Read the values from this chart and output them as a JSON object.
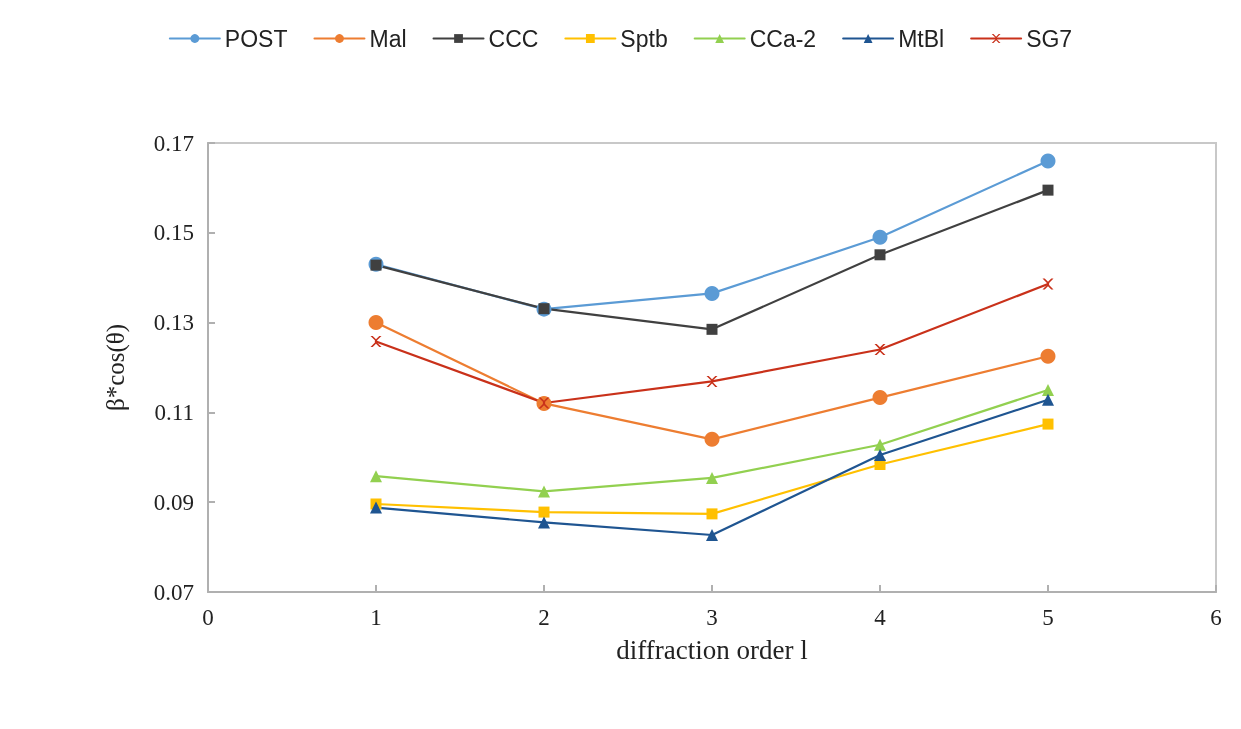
{
  "chart_data": {
    "type": "line",
    "xlabel": "diffraction order l",
    "ylabel": "β*cos(θ)",
    "x": [
      1,
      2,
      3,
      4,
      5
    ],
    "xlim": [
      0,
      6
    ],
    "xticks": [
      0,
      1,
      2,
      3,
      4,
      5,
      6
    ],
    "ylim": [
      0.07,
      0.17
    ],
    "yticks": [
      0.07,
      0.09,
      0.11,
      0.13,
      0.15,
      0.17
    ],
    "grid": false,
    "legend": "top",
    "line_style": "solid",
    "series": [
      {
        "name": "POST",
        "color": "#5b9bd5",
        "marker": "circle",
        "values": [
          0.143,
          0.133,
          0.1365,
          0.149,
          0.166
        ]
      },
      {
        "name": "Mal",
        "color": "#ed7d31",
        "marker": "circle",
        "values": [
          0.13,
          0.112,
          0.104,
          0.1133,
          0.1225
        ]
      },
      {
        "name": "CCC",
        "color": "#404040",
        "marker": "square",
        "values": [
          0.1428,
          0.1331,
          0.1285,
          0.1451,
          0.1595
        ]
      },
      {
        "name": "Sptb",
        "color": "#ffc000",
        "marker": "square",
        "values": [
          0.0896,
          0.0878,
          0.0874,
          0.0984,
          0.1074
        ]
      },
      {
        "name": "CCa-2",
        "color": "#92d050",
        "marker": "triangle",
        "values": [
          0.0958,
          0.0924,
          0.0954,
          0.1028,
          0.115
        ]
      },
      {
        "name": "MtBl",
        "color": "#1f5591",
        "marker": "triangle",
        "values": [
          0.0888,
          0.0855,
          0.0827,
          0.1005,
          0.1128
        ]
      },
      {
        "name": "SG7",
        "color": "#c9311a",
        "marker": "cross",
        "values": [
          0.1258,
          0.1121,
          0.1169,
          0.124,
          0.1386
        ]
      }
    ]
  }
}
